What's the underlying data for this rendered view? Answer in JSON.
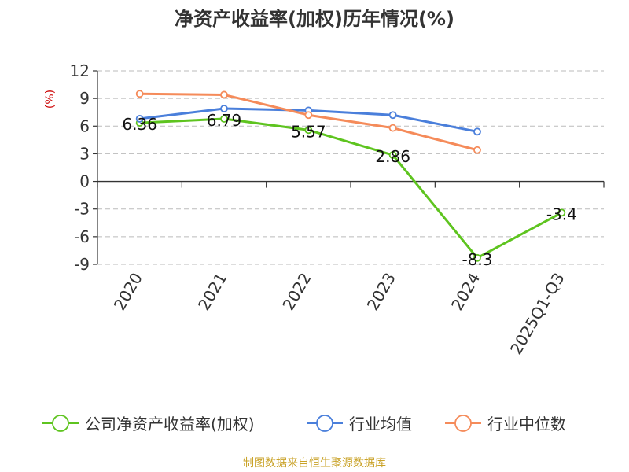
{
  "chart_data": {
    "type": "line",
    "title": "净资产收益率(加权)历年情况(%)",
    "ylabel": "(%)",
    "xlabel": "",
    "ylim": [
      -9,
      12
    ],
    "yticks": [
      12,
      9,
      6,
      3,
      0,
      -3,
      -6,
      -9
    ],
    "categories": [
      "2020",
      "2021",
      "2022",
      "2023",
      "2024",
      "2025Q1-Q3"
    ],
    "series": [
      {
        "name": "公司净资产收益率(加权)",
        "color": "#5ec41f",
        "values": [
          6.36,
          6.79,
          5.57,
          2.86,
          -8.3,
          -3.4
        ],
        "labels": [
          "6.36",
          "6.79",
          "5.57",
          "2.86",
          "-8.3",
          "-3.4"
        ]
      },
      {
        "name": "行业均值",
        "color": "#4a7fdb",
        "values": [
          6.8,
          7.9,
          7.7,
          7.2,
          5.4,
          null
        ]
      },
      {
        "name": "行业中位数",
        "color": "#f58b5a",
        "values": [
          9.5,
          9.4,
          7.2,
          5.8,
          3.4,
          null
        ]
      }
    ],
    "grid": true,
    "legend_position": "bottom"
  },
  "footer": {
    "source": "制图数据来自恒生聚源数据库"
  },
  "colors": {
    "title": "#333333",
    "axis": "#333333",
    "grid": "#bbbbbb",
    "ylabel": "#cc0000",
    "source": "#c9a227"
  }
}
